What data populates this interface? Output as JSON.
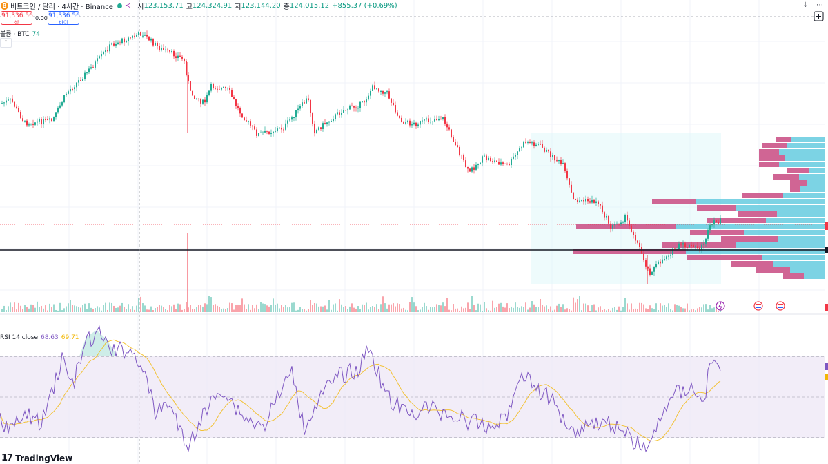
{
  "header": {
    "coin_icon": "B",
    "title": "비트코인 / 달러 · 4시간 · Binance",
    "status_icon": "market-open-dot",
    "ohlc": [
      {
        "k": "시",
        "v": "123,153.71"
      },
      {
        "k": "고",
        "v": "124,324.91"
      },
      {
        "k": "저",
        "v": "123,144.20"
      },
      {
        "k": "종",
        "v": "124,015.12"
      }
    ],
    "change": "+855.37 (+0.69%)"
  },
  "trade": {
    "sell_price": "91,336.56",
    "sell_label": "셀",
    "spread": "0.00",
    "buy_price": "91,336.56",
    "buy_label": "바이"
  },
  "volume_legend": {
    "label": "볼륨 · BTC",
    "value": "74"
  },
  "rsi_legend": {
    "label": "RSI 14 close",
    "rsi_value": "68.63",
    "ma_value": "69.71"
  },
  "toolbar": {
    "download_icon": "↓",
    "more_icon": "⋯"
  },
  "branding": {
    "logo_mark": "17",
    "logo_text": "TradingView"
  },
  "colors": {
    "up": "#22ab94",
    "down": "#f23645",
    "rsi": "#7e57c2",
    "rsi_ma": "#f2b705",
    "profile_up": "#5bc8dd",
    "profile_down": "#ec407a"
  }
}
